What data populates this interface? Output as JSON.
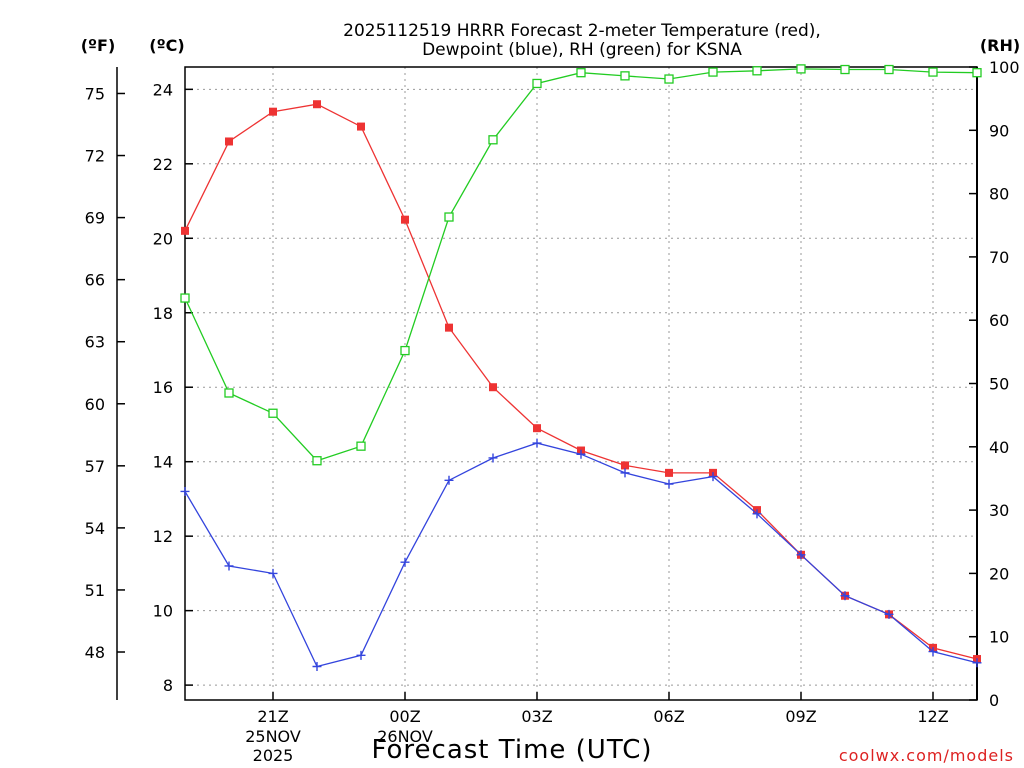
{
  "chart_data": {
    "type": "line",
    "title_line1": "2025112519 HRRR Forecast 2-meter Temperature (red),",
    "title_line2": "Dewpoint (blue), RH (green) for KSNA",
    "xlabel": "Forecast Time (UTC)",
    "credit": "coolwx.com/models",
    "units": {
      "fahrenheit": "(ºF)",
      "celsius": "(ºC)",
      "rh": "(RH)"
    },
    "x_hours": [
      0,
      1,
      2,
      3,
      4,
      5,
      6,
      7,
      8,
      9,
      10,
      11,
      12,
      13,
      14,
      15,
      16,
      17,
      18
    ],
    "xlim": [
      0,
      18
    ],
    "x_ticks": [
      {
        "hour": 2,
        "label": "21Z"
      },
      {
        "hour": 5,
        "label": "00Z"
      },
      {
        "hour": 8,
        "label": "03Z"
      },
      {
        "hour": 11,
        "label": "06Z"
      },
      {
        "hour": 14,
        "label": "09Z"
      },
      {
        "hour": 17,
        "label": "12Z"
      }
    ],
    "date_labels": [
      {
        "hour": 2,
        "lines": [
          "25NOV",
          "2025"
        ]
      },
      {
        "hour": 5,
        "lines": [
          "26NOV"
        ]
      }
    ],
    "celsius_axis": {
      "ylim": [
        7.6,
        24.6
      ],
      "ticks": [
        8,
        10,
        12,
        14,
        16,
        18,
        20,
        22,
        24
      ]
    },
    "fahrenheit_ticks": [
      48,
      51,
      54,
      57,
      60,
      63,
      66,
      69,
      72,
      75
    ],
    "rh_axis": {
      "ylim": [
        0,
        100
      ],
      "ticks": [
        0,
        10,
        20,
        30,
        40,
        50,
        60,
        70,
        80,
        90,
        100
      ]
    },
    "series": [
      {
        "name": "Temperature",
        "axis": "celsius",
        "color": "#ee3333",
        "marker": "filled-square",
        "values": [
          20.2,
          22.6,
          23.4,
          23.6,
          23.0,
          20.5,
          17.6,
          16.0,
          14.9,
          14.3,
          13.9,
          13.7,
          13.7,
          12.7,
          11.5,
          10.4,
          9.9,
          9.0,
          8.7
        ]
      },
      {
        "name": "Dewpoint",
        "axis": "celsius",
        "color": "#3344dd",
        "marker": "plus",
        "values": [
          13.2,
          11.2,
          11.0,
          8.5,
          8.8,
          11.3,
          13.5,
          14.1,
          14.5,
          14.2,
          13.7,
          13.4,
          13.6,
          12.6,
          11.5,
          10.4,
          9.9,
          8.9,
          8.6
        ]
      },
      {
        "name": "RH",
        "axis": "rh",
        "color": "#22cc22",
        "marker": "open-square",
        "values": [
          63.5,
          48.5,
          45.3,
          37.8,
          40.1,
          55.2,
          76.3,
          88.5,
          97.4,
          99.1,
          98.6,
          98.1,
          99.2,
          99.4,
          99.7,
          99.6,
          99.6,
          99.2,
          99.1
        ]
      }
    ]
  }
}
